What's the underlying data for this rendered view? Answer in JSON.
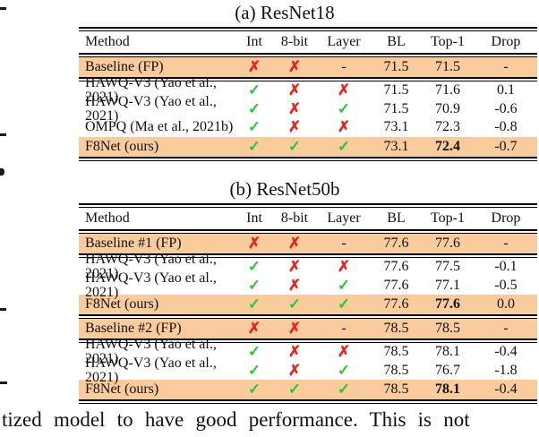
{
  "colors": {
    "highlight": "#f9cb9d",
    "check": "#2ec82e",
    "cross": "#e8231c"
  },
  "icons": {
    "check": "✓",
    "cross": "✗"
  },
  "tables": [
    {
      "title": "(a) ResNet18",
      "columns": [
        "Method",
        "Int",
        "8-bit",
        "Layer",
        "BL",
        "Top-1",
        "Drop"
      ],
      "groups": [
        {
          "rows": [
            {
              "cells": [
                "Baseline (FP)",
                "cross",
                "cross",
                "-",
                "71.5",
                "71.5",
                "-"
              ],
              "highlight": true
            }
          ]
        },
        {
          "rows": [
            {
              "cells": [
                "HAWQ-V3 (Yao et al., 2021)",
                "check",
                "cross",
                "cross",
                "71.5",
                "71.6",
                "0.1"
              ]
            },
            {
              "cells": [
                "HAWQ-V3 (Yao et al., 2021)",
                "check",
                "cross",
                "check",
                "71.5",
                "70.9",
                "-0.6"
              ]
            },
            {
              "cells": [
                "OMPQ (Ma et al., 2021b)",
                "check",
                "cross",
                "cross",
                "73.1",
                "72.3",
                "-0.8"
              ]
            },
            {
              "cells": [
                "F8Net (ours)",
                "check",
                "check",
                "check",
                "73.1",
                "72.4",
                "-0.7"
              ],
              "highlight": true,
              "bold_col": 5
            }
          ]
        }
      ]
    },
    {
      "title": "(b) ResNet50b",
      "columns": [
        "Method",
        "Int",
        "8-bit",
        "Layer",
        "BL",
        "Top-1",
        "Drop"
      ],
      "groups": [
        {
          "rows": [
            {
              "cells": [
                "Baseline #1 (FP)",
                "cross",
                "cross",
                "-",
                "77.6",
                "77.6",
                "-"
              ],
              "highlight": true
            }
          ]
        },
        {
          "rows": [
            {
              "cells": [
                "HAWQ-V3 (Yao et al., 2021)",
                "check",
                "cross",
                "cross",
                "77.6",
                "77.5",
                "-0.1"
              ]
            },
            {
              "cells": [
                "HAWQ-V3 (Yao et al., 2021)",
                "check",
                "cross",
                "check",
                "77.6",
                "77.1",
                "-0.5"
              ]
            },
            {
              "cells": [
                "F8Net (ours)",
                "check",
                "check",
                "check",
                "77.6",
                "77.6",
                "0.0"
              ],
              "highlight": true,
              "bold_col": 5
            }
          ]
        },
        {
          "rows": [
            {
              "cells": [
                "Baseline #2 (FP)",
                "cross",
                "cross",
                "-",
                "78.5",
                "78.5",
                "-"
              ],
              "highlight": true
            }
          ]
        },
        {
          "rows": [
            {
              "cells": [
                "HAWQ-V3 (Yao et al., 2021)",
                "check",
                "cross",
                "cross",
                "78.5",
                "78.1",
                "-0.4"
              ]
            },
            {
              "cells": [
                "HAWQ-V3 (Yao et al., 2021)",
                "check",
                "cross",
                "check",
                "78.5",
                "76.7",
                "-1.8"
              ]
            },
            {
              "cells": [
                "F8Net (ours)",
                "check",
                "check",
                "check",
                "78.5",
                "78.1",
                "-0.4"
              ],
              "highlight": true,
              "bold_col": 5
            }
          ]
        }
      ]
    }
  ],
  "body_text": {
    "line": "tized model to have good performance.  This is not"
  }
}
